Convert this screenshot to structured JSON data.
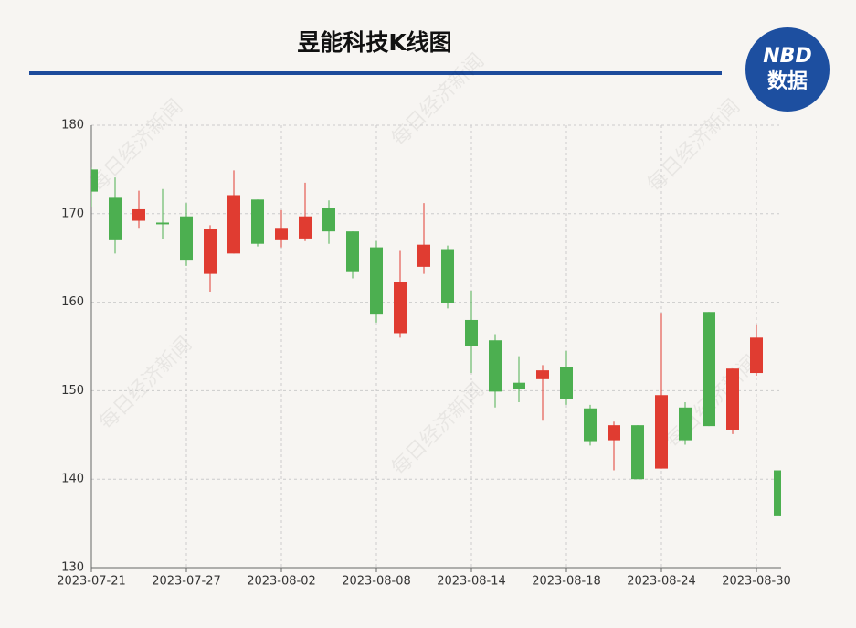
{
  "chart_data": {
    "type": "candlestick",
    "title": "昱能科技K线图",
    "logo": {
      "top": "NBD",
      "bottom": "数据"
    },
    "watermark": "每日经济新闻",
    "categories": [
      "2023-07-21",
      null,
      null,
      null,
      "2023-07-27",
      null,
      null,
      null,
      "2023-08-02",
      null,
      null,
      null,
      "2023-08-08",
      null,
      null,
      null,
      "2023-08-14",
      null,
      null,
      null,
      "2023-08-18",
      null,
      null,
      null,
      "2023-08-24",
      null,
      null,
      null,
      "2023-08-30",
      null
    ],
    "open": [
      175.0,
      171.8,
      169.2,
      169.0,
      169.7,
      163.2,
      165.5,
      171.6,
      167.0,
      167.2,
      170.7,
      168.0,
      166.2,
      156.5,
      164.0,
      166.0,
      158.0,
      155.7,
      150.9,
      151.3,
      152.7,
      148.0,
      144.4,
      146.1,
      141.2,
      148.1,
      158.9,
      145.6,
      152.0,
      141.0
    ],
    "high": [
      175.2,
      174.1,
      172.6,
      172.8,
      171.2,
      168.7,
      174.9,
      171.6,
      170.4,
      173.5,
      171.5,
      168.0,
      166.9,
      165.8,
      171.2,
      166.4,
      161.3,
      156.4,
      153.9,
      152.9,
      154.5,
      148.4,
      146.5,
      146.1,
      158.8,
      148.7,
      158.9,
      152.5,
      157.5,
      141.0
    ],
    "low": [
      170.8,
      165.5,
      168.4,
      167.1,
      164.1,
      161.2,
      165.5,
      166.3,
      166.2,
      166.9,
      166.6,
      162.7,
      157.7,
      156.0,
      163.2,
      159.3,
      152.0,
      148.1,
      148.7,
      146.6,
      148.4,
      143.8,
      141.0,
      140.0,
      141.2,
      143.9,
      146.0,
      145.1,
      151.7,
      135.9
    ],
    "close": [
      172.5,
      167.0,
      170.5,
      168.8,
      164.8,
      168.3,
      172.1,
      166.6,
      168.4,
      169.7,
      168.0,
      163.4,
      158.6,
      162.3,
      166.5,
      159.9,
      155.0,
      149.9,
      150.2,
      152.3,
      149.1,
      144.3,
      146.1,
      140.0,
      149.5,
      144.4,
      146.0,
      152.5,
      156.0,
      135.9
    ],
    "up_color": "#e03c31",
    "down_color": "#4caf50",
    "ylim": [
      130,
      180
    ],
    "yticks": [
      130,
      140,
      150,
      160,
      170,
      180
    ],
    "grid": true
  }
}
